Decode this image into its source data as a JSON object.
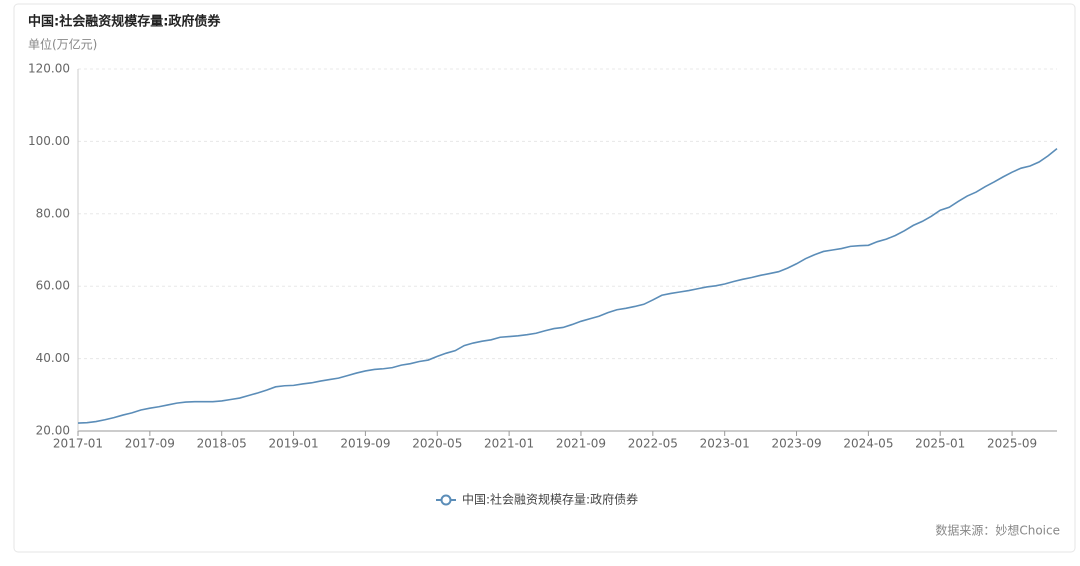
{
  "chart_data": {
    "type": "line",
    "title": "中国:社会融资规模存量:政府债券",
    "unit_label": "单位(万亿元)",
    "source": "数据来源：妙想Choice",
    "x": [
      "2017-01",
      "2017-02",
      "2017-03",
      "2017-04",
      "2017-05",
      "2017-06",
      "2017-07",
      "2017-08",
      "2017-09",
      "2017-10",
      "2017-11",
      "2017-12",
      "2018-01",
      "2018-02",
      "2018-03",
      "2018-04",
      "2018-05",
      "2018-06",
      "2018-07",
      "2018-08",
      "2018-09",
      "2018-10",
      "2018-11",
      "2018-12",
      "2019-01",
      "2019-02",
      "2019-03",
      "2019-04",
      "2019-05",
      "2019-06",
      "2019-07",
      "2019-08",
      "2019-09",
      "2019-10",
      "2019-11",
      "2019-12",
      "2020-01",
      "2020-02",
      "2020-03",
      "2020-04",
      "2020-05",
      "2020-06",
      "2020-07",
      "2020-08",
      "2020-09",
      "2020-10",
      "2020-11",
      "2020-12",
      "2021-01",
      "2021-02",
      "2021-03",
      "2021-04",
      "2021-05",
      "2021-06",
      "2021-07",
      "2021-08",
      "2021-09",
      "2021-10",
      "2021-11",
      "2021-12",
      "2022-01",
      "2022-02",
      "2022-03",
      "2022-04",
      "2022-05",
      "2022-06",
      "2022-07",
      "2022-08",
      "2022-09",
      "2022-10",
      "2022-11",
      "2022-12",
      "2023-01",
      "2023-02",
      "2023-03",
      "2023-04",
      "2023-05",
      "2023-06",
      "2023-07",
      "2023-08",
      "2023-09",
      "2023-10",
      "2023-11",
      "2023-12",
      "2024-01",
      "2024-02",
      "2024-03",
      "2024-04",
      "2024-05",
      "2024-06",
      "2024-07",
      "2024-08",
      "2024-09",
      "2024-10",
      "2024-11",
      "2024-12",
      "2025-01",
      "2025-02",
      "2025-03",
      "2025-04",
      "2025-05",
      "2025-06",
      "2025-07",
      "2025-08",
      "2025-09",
      "2025-10",
      "2025-11",
      "2025-12",
      "2026-01",
      "2026-02"
    ],
    "series": [
      {
        "name": "中国:社会融资规模存量:政府债券",
        "color": "#5b8db8",
        "values": [
          22.2,
          22.3,
          22.6,
          23.1,
          23.7,
          24.4,
          25.0,
          25.8,
          26.3,
          26.7,
          27.2,
          27.7,
          28.0,
          28.1,
          28.1,
          28.1,
          28.3,
          28.7,
          29.1,
          29.8,
          30.5,
          31.3,
          32.2,
          32.5,
          32.6,
          33.0,
          33.3,
          33.8,
          34.2,
          34.6,
          35.3,
          36.0,
          36.6,
          37.0,
          37.2,
          37.5,
          38.2,
          38.6,
          39.2,
          39.6,
          40.6,
          41.5,
          42.2,
          43.6,
          44.3,
          44.8,
          45.2,
          45.9,
          46.1,
          46.3,
          46.6,
          47.0,
          47.7,
          48.3,
          48.6,
          49.4,
          50.3,
          51.0,
          51.7,
          52.7,
          53.5,
          53.9,
          54.4,
          55.0,
          56.2,
          57.5,
          58.0,
          58.4,
          58.8,
          59.3,
          59.8,
          60.1,
          60.6,
          61.3,
          61.9,
          62.4,
          63.0,
          63.5,
          64.0,
          65.0,
          66.2,
          67.6,
          68.7,
          69.6,
          70.0,
          70.4,
          71.0,
          71.2,
          71.3,
          72.3,
          73.0,
          74.0,
          75.3,
          76.8,
          77.9,
          79.3,
          81.0,
          81.8,
          83.4,
          84.9,
          86.0,
          87.5,
          88.8,
          90.2,
          91.5,
          92.6,
          93.2,
          94.3,
          96.0,
          98.0
        ]
      }
    ],
    "xticks": [
      "2017-01",
      "2017-09",
      "2018-05",
      "2019-01",
      "2019-09",
      "2020-05",
      "2021-01",
      "2021-09",
      "2022-05",
      "2023-01",
      "2023-09",
      "2024-05",
      "2025-01",
      "2025-09"
    ],
    "ylim": [
      20,
      120
    ],
    "yticks": [
      {
        "value": 20,
        "label": "20.00"
      },
      {
        "value": 40,
        "label": "40.00"
      },
      {
        "value": 60,
        "label": "60.00"
      },
      {
        "value": 80,
        "label": "80.00"
      },
      {
        "value": 100,
        "label": "100.00"
      },
      {
        "value": 120,
        "label": "120.00"
      }
    ],
    "grid": true
  }
}
